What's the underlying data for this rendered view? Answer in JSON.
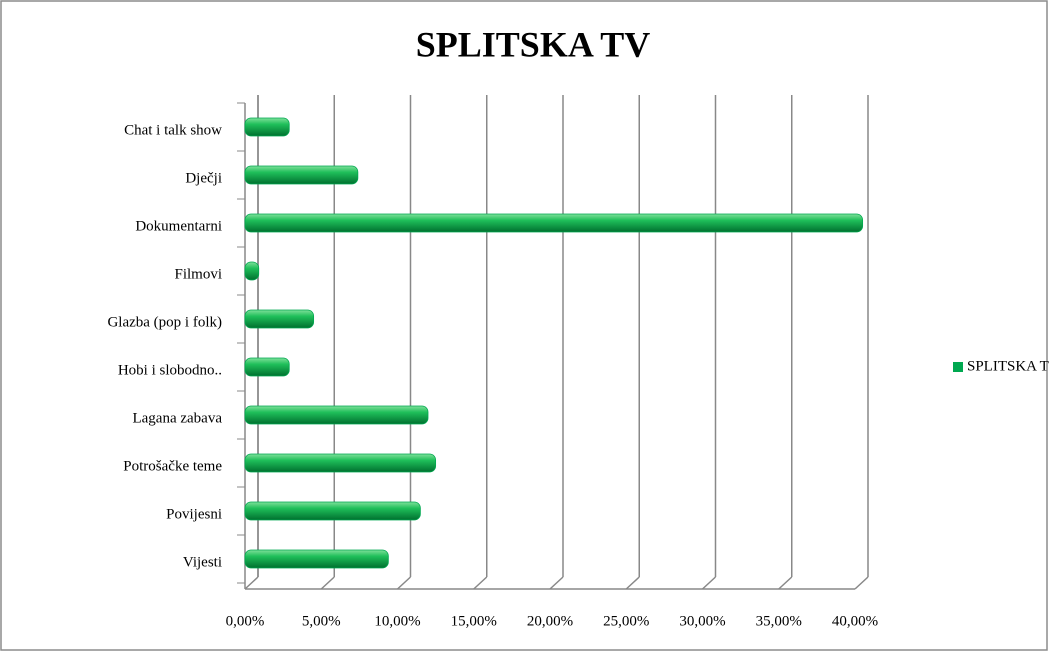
{
  "chart_data": {
    "type": "bar",
    "orientation": "horizontal",
    "title": "SPLITSKA TV",
    "categories": [
      "Chat i talk show",
      "Dječji",
      "Dokumentarni",
      "Filmovi",
      "Glazba (pop i folk)",
      "Hobi i slobodno..",
      "Lagana zabava",
      "Potrošačke teme",
      "Povijesni",
      "Vijesti"
    ],
    "series": [
      {
        "name": "SPLITSKA TV",
        "color": "#00a850",
        "values": [
          2.9,
          7.4,
          40.5,
          0.9,
          4.5,
          2.9,
          12.0,
          12.5,
          11.5,
          9.4
        ]
      }
    ],
    "xlim": [
      0,
      40
    ],
    "xticks": [
      {
        "value": 0,
        "label": "0,00%"
      },
      {
        "value": 5,
        "label": "5,00%"
      },
      {
        "value": 10,
        "label": "10,00%"
      },
      {
        "value": 15,
        "label": "15,00%"
      },
      {
        "value": 20,
        "label": "20,00%"
      },
      {
        "value": 25,
        "label": "25,00%"
      },
      {
        "value": 30,
        "label": "30,00%"
      },
      {
        "value": 35,
        "label": "35,00%"
      },
      {
        "value": 40,
        "label": "40,00%"
      }
    ],
    "grid": true,
    "legend": "right"
  }
}
